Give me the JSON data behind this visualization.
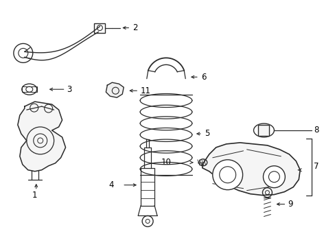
{
  "bg_color": "#ffffff",
  "line_color": "#2a2a2a",
  "text_color": "#000000",
  "fig_width": 4.89,
  "fig_height": 3.6,
  "dpi": 100,
  "label_fontsize": 8.5
}
